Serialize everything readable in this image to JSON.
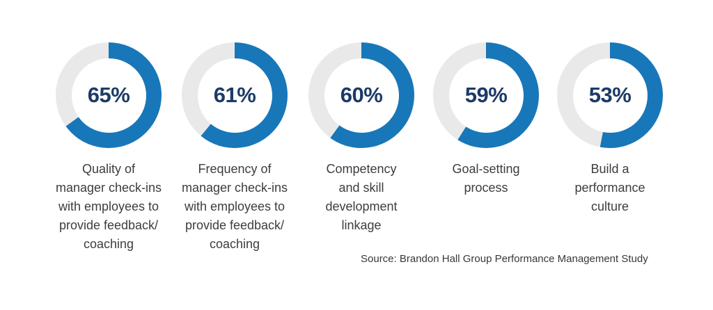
{
  "colors": {
    "arc_fill": "#1877b8",
    "arc_track": "#e9e9e9",
    "percent_text": "#1c3a67",
    "label_text": "#3d3d3d"
  },
  "chart_data": {
    "type": "pie",
    "subtype": "donut-row",
    "units": "%",
    "start_angle_deg": 0,
    "direction": "clockwise",
    "title": "",
    "categories": [
      "Quality of manager check-ins with employees to provide feedback/coaching",
      "Frequency of manager check-ins with employees to provide feedback/coaching",
      "Competency and skill development linkage",
      "Goal-setting process",
      "Build a performance culture"
    ],
    "values": [
      65,
      61,
      60,
      59,
      53
    ],
    "donuts": [
      {
        "value": 65,
        "percent_label": "65%",
        "label_multiline": "Quality of\nmanager check-ins\nwith employees to\nprovide feedback/\ncoaching"
      },
      {
        "value": 61,
        "percent_label": "61%",
        "label_multiline": "Frequency of\nmanager check-ins\nwith employees to\nprovide feedback/\ncoaching"
      },
      {
        "value": 60,
        "percent_label": "60%",
        "label_multiline": "Competency\nand skill\ndevelopment\nlinkage"
      },
      {
        "value": 59,
        "percent_label": "59%",
        "label_multiline": "Goal-setting\nprocess"
      },
      {
        "value": 53,
        "percent_label": "53%",
        "label_multiline": "Build a\nperformance\nculture"
      }
    ],
    "source_note": "Source: Brandon Hall Group Performance Management Study"
  }
}
